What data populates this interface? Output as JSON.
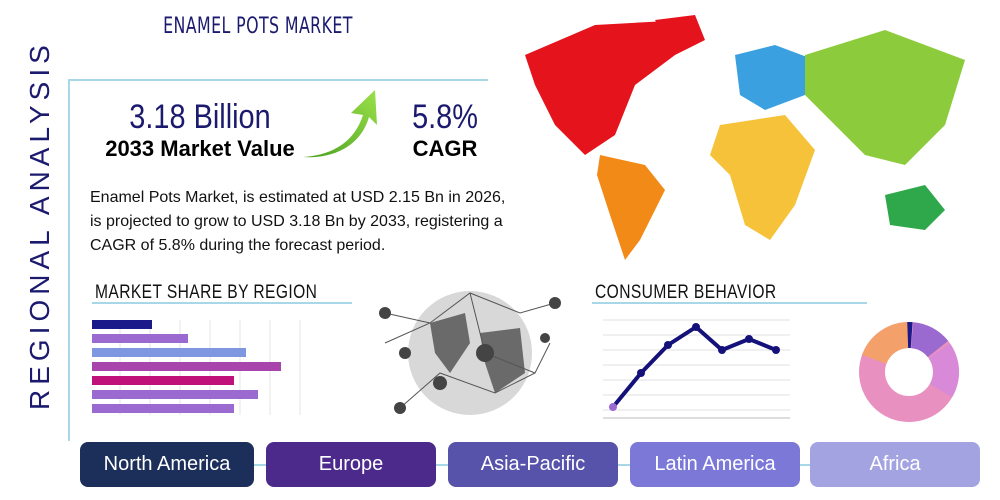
{
  "title": "ENAMEL POTS MARKET",
  "side_label": "REGIONAL ANALYSIS",
  "market_value": {
    "value": "3.18 Billion",
    "label": "2033 Market Value"
  },
  "cagr": {
    "value": "5.8%",
    "label": "CAGR"
  },
  "description": "Enamel Pots Market, is estimated at USD 2.15 Bn in 2026, is projected to grow to USD 3.18 Bn by 2033, registering a CAGR of 5.8% during the forecast period.",
  "market_share_title": "MARKET SHARE BY REGION",
  "consumer_behavior_title": "CONSUMER BEHAVIOR",
  "regions": [
    {
      "label": "North America",
      "color": "#1c2f5a"
    },
    {
      "label": "Europe",
      "color": "#4b2a8c"
    },
    {
      "label": "Asia-Pacific",
      "color": "#5752aa"
    },
    {
      "label": "Latin America",
      "color": "#7c78d8"
    },
    {
      "label": "Africa",
      "color": "#a4a3e2"
    }
  ],
  "accent": "#1b1a6e"
}
